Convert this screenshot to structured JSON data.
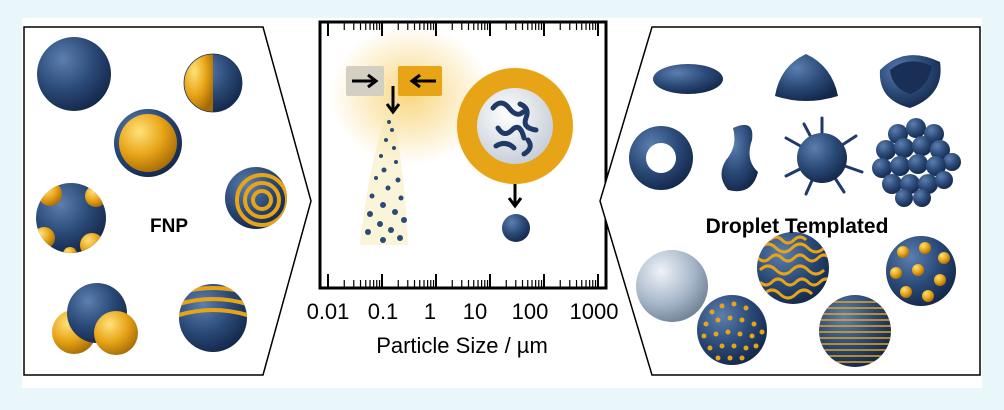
{
  "figure": {
    "left_label": "FNP",
    "right_label": "Droplet Templated",
    "axis": {
      "ticks": [
        "0.01",
        "0.1",
        "1",
        "10",
        "100",
        "1000"
      ],
      "title": "Particle Size / µm"
    }
  },
  "colors": {
    "background": "#e9f6fa",
    "navy": "#2b4a78",
    "gold": "#e8a417",
    "silver": "#b8c7d6"
  }
}
